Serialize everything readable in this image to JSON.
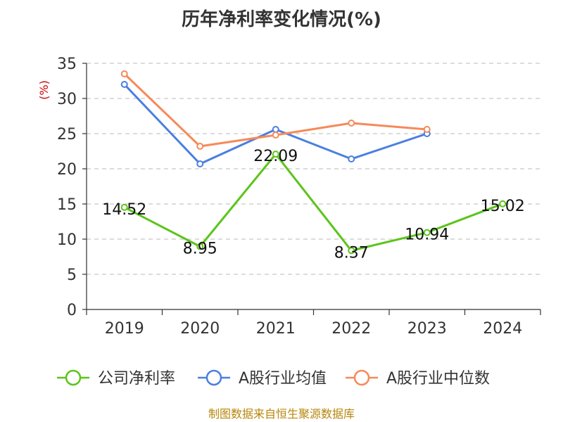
{
  "chart_data": {
    "type": "line",
    "title": "历年净利率变化情况(%)",
    "ylabel": "(%)",
    "xlabel": "",
    "categories": [
      "2019",
      "2020",
      "2021",
      "2022",
      "2023",
      "2024"
    ],
    "ylim": [
      0,
      35
    ],
    "yticks": [
      0,
      5,
      10,
      15,
      20,
      25,
      30,
      35
    ],
    "grid": true,
    "legend_position": "bottom",
    "series": [
      {
        "name": "公司净利率",
        "color": "#5cc41a",
        "values": [
          14.52,
          8.95,
          22.09,
          8.37,
          10.94,
          15.02
        ],
        "show_labels": true
      },
      {
        "name": "A股行业均值",
        "color": "#4a7fe0",
        "values": [
          32.0,
          20.7,
          25.6,
          21.4,
          25.0,
          null
        ],
        "show_labels": false
      },
      {
        "name": "A股行业中位数",
        "color": "#f58a5a",
        "values": [
          33.5,
          23.2,
          24.8,
          26.5,
          25.6,
          null
        ],
        "show_labels": false
      }
    ],
    "source": "制图数据来自恒生聚源数据库"
  }
}
